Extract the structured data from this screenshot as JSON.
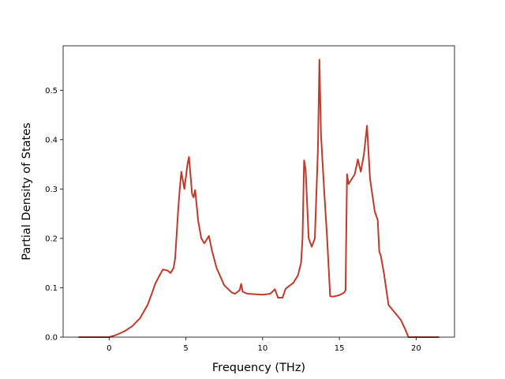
{
  "chart_data": {
    "type": "line",
    "xlabel": "Frequency (THz)",
    "ylabel": "Partial Density of States",
    "xlim": [
      -3,
      22.5
    ],
    "ylim": [
      0,
      0.59
    ],
    "xticks": [
      0,
      5,
      10,
      15,
      20
    ],
    "yticks": [
      0.0,
      0.1,
      0.2,
      0.3,
      0.4,
      0.5
    ],
    "xtick_labels": [
      "0",
      "5",
      "10",
      "15",
      "20"
    ],
    "ytick_labels": [
      "0.0",
      "0.1",
      "0.2",
      "0.3",
      "0.4",
      "0.5"
    ],
    "grid": false,
    "line_color": "#c0392b",
    "series": [
      {
        "x": [
          -2.0,
          -1.0,
          0.0,
          0.5,
          1.0,
          1.5,
          2.0,
          2.5,
          2.8,
          3.0,
          3.2,
          3.5,
          3.8,
          4.0,
          4.2,
          4.3,
          4.5,
          4.6,
          4.7,
          4.9,
          5.1,
          5.2,
          5.4,
          5.5,
          5.6,
          5.8,
          6.0,
          6.2,
          6.5,
          6.7,
          7.0,
          7.5,
          8.0,
          8.2,
          8.5,
          8.6,
          8.7,
          9.0,
          10.0,
          10.5,
          10.8,
          11.0,
          11.3,
          11.5,
          12.0,
          12.3,
          12.5,
          12.6,
          12.7,
          12.8,
          13.0,
          13.2,
          13.4,
          13.6,
          13.7,
          13.8,
          14.0,
          14.2,
          14.4,
          14.6,
          15.0,
          15.3,
          15.4,
          15.5,
          15.6,
          15.8,
          16.0,
          16.2,
          16.4,
          16.6,
          16.8,
          17.0,
          17.3,
          17.5,
          17.6,
          17.7,
          17.9,
          18.2,
          19.0,
          19.3,
          19.5,
          20.0,
          21.5
        ],
        "y": [
          0.0,
          0.0,
          0.0,
          0.005,
          0.012,
          0.022,
          0.038,
          0.065,
          0.09,
          0.108,
          0.12,
          0.137,
          0.135,
          0.13,
          0.14,
          0.16,
          0.26,
          0.3,
          0.335,
          0.3,
          0.35,
          0.365,
          0.29,
          0.283,
          0.298,
          0.235,
          0.2,
          0.19,
          0.205,
          0.175,
          0.14,
          0.105,
          0.09,
          0.088,
          0.095,
          0.108,
          0.092,
          0.088,
          0.086,
          0.088,
          0.097,
          0.08,
          0.08,
          0.098,
          0.11,
          0.125,
          0.15,
          0.2,
          0.358,
          0.34,
          0.2,
          0.183,
          0.2,
          0.38,
          0.562,
          0.41,
          0.3,
          0.2,
          0.083,
          0.082,
          0.085,
          0.09,
          0.095,
          0.33,
          0.31,
          0.32,
          0.33,
          0.36,
          0.335,
          0.37,
          0.428,
          0.32,
          0.255,
          0.237,
          0.173,
          0.165,
          0.13,
          0.065,
          0.035,
          0.015,
          0.0,
          0.0,
          0.0
        ]
      }
    ]
  }
}
